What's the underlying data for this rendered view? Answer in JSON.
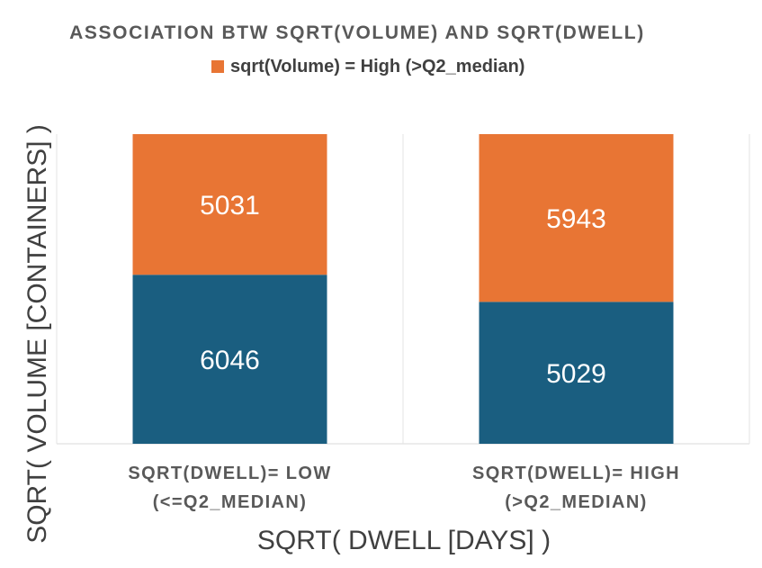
{
  "chart_data": {
    "type": "bar",
    "stacked": true,
    "percent_stacked": true,
    "title": "ASSOCIATION BTW SQRT(VOLUME) AND SQRT(DWELL)",
    "xlabel": "SQRT( DWELL [DAYS] )",
    "ylabel": "SQRT( VOLUME [CONTAINERS] )",
    "categories": [
      [
        "SQRT(DWELL)= LOW",
        "(<=Q2_MEDIAN)"
      ],
      [
        "SQRT(DWELL)= HIGH",
        "(>Q2_MEDIAN)"
      ]
    ],
    "series": [
      {
        "values": [
          6046,
          5029
        ],
        "color": "#1a5e80"
      },
      {
        "name": "sqrt(Volume) = High (>Q2_median)",
        "values": [
          5031,
          5943
        ],
        "color": "#e87534"
      }
    ],
    "legend_position": "top",
    "grid": false
  }
}
